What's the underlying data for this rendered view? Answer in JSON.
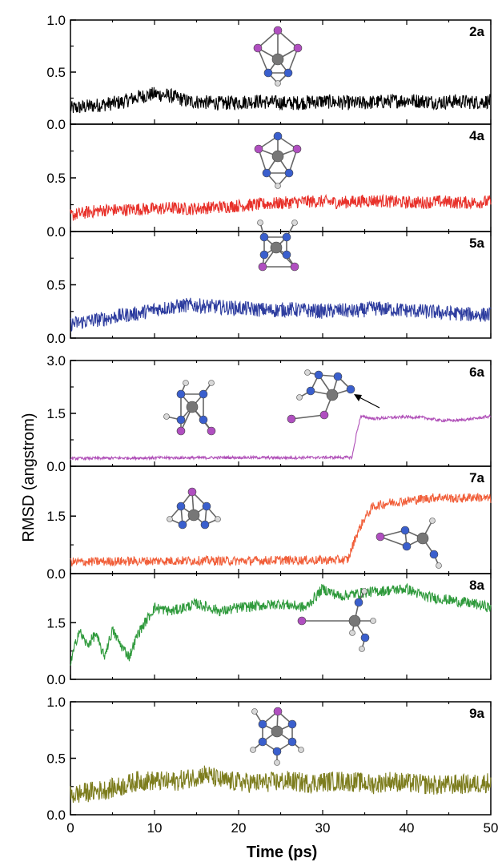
{
  "figure": {
    "ylabel": "RMSD (angstrom)",
    "xlabel": "Time (ps)",
    "x_ticks": [
      "0",
      "10",
      "20",
      "30",
      "40",
      "50"
    ]
  },
  "chart_data": [
    {
      "type": "line",
      "label": "2a",
      "color": "#000000",
      "ylim": [
        0,
        1.0
      ],
      "yticks": [
        0.0,
        0.5,
        1.0
      ],
      "ytick_labels": [
        "0.0",
        "0.5",
        "1.0"
      ],
      "xlim": [
        0,
        50
      ],
      "series": [
        {
          "x": [
            0,
            2,
            4,
            6,
            8,
            10,
            12,
            14,
            16,
            18,
            20,
            22,
            24,
            26,
            28,
            30,
            32,
            34,
            36,
            38,
            40,
            42,
            44,
            46,
            48,
            50
          ],
          "y": [
            0.15,
            0.17,
            0.19,
            0.21,
            0.26,
            0.29,
            0.27,
            0.22,
            0.21,
            0.2,
            0.21,
            0.22,
            0.21,
            0.2,
            0.21,
            0.22,
            0.21,
            0.2,
            0.21,
            0.22,
            0.23,
            0.22,
            0.21,
            0.22,
            0.21,
            0.22
          ]
        }
      ],
      "noise": 0.07
    },
    {
      "type": "line",
      "label": "4a",
      "color": "#e8312a",
      "ylim": [
        0,
        1.0
      ],
      "yticks": [
        0.0,
        0.5,
        1.0
      ],
      "ytick_labels": [
        "0.0",
        "0.5",
        ""
      ],
      "xlim": [
        0,
        50
      ],
      "series": [
        {
          "x": [
            0,
            2,
            4,
            6,
            8,
            10,
            12,
            14,
            16,
            18,
            20,
            22,
            24,
            26,
            28,
            30,
            32,
            34,
            36,
            38,
            40,
            42,
            44,
            46,
            48,
            50
          ],
          "y": [
            0.15,
            0.18,
            0.2,
            0.2,
            0.21,
            0.21,
            0.22,
            0.21,
            0.22,
            0.23,
            0.24,
            0.25,
            0.26,
            0.27,
            0.28,
            0.28,
            0.27,
            0.28,
            0.29,
            0.28,
            0.27,
            0.27,
            0.28,
            0.27,
            0.27,
            0.28
          ]
        }
      ],
      "noise": 0.06
    },
    {
      "type": "line",
      "label": "5a",
      "color": "#2e3d9f",
      "ylim": [
        0,
        1.0
      ],
      "yticks": [
        0.0,
        0.5,
        1.0
      ],
      "ytick_labels": [
        "0.0",
        "0.5",
        ""
      ],
      "xlim": [
        0,
        50
      ],
      "series": [
        {
          "x": [
            0,
            2,
            4,
            6,
            8,
            10,
            12,
            14,
            16,
            18,
            20,
            22,
            24,
            26,
            28,
            30,
            32,
            34,
            36,
            38,
            40,
            42,
            44,
            46,
            48,
            50
          ],
          "y": [
            0.13,
            0.16,
            0.18,
            0.21,
            0.23,
            0.27,
            0.29,
            0.31,
            0.3,
            0.29,
            0.28,
            0.27,
            0.26,
            0.27,
            0.26,
            0.25,
            0.26,
            0.25,
            0.28,
            0.27,
            0.26,
            0.25,
            0.24,
            0.23,
            0.22,
            0.22
          ]
        }
      ],
      "noise": 0.07
    },
    {
      "type": "line",
      "label": "6a",
      "color": "#b050b8",
      "ylim": [
        0,
        3.0
      ],
      "yticks": [
        0.0,
        1.5,
        3.0
      ],
      "ytick_labels": [
        "0.0",
        "1.5",
        "3.0"
      ],
      "xlim": [
        0,
        50
      ],
      "series": [
        {
          "x": [
            0,
            5,
            10,
            15,
            20,
            25,
            30,
            33.5,
            34.0,
            34.5,
            35,
            36,
            38,
            40,
            42,
            44,
            46,
            48,
            50
          ],
          "y": [
            0.22,
            0.23,
            0.24,
            0.24,
            0.25,
            0.24,
            0.25,
            0.25,
            0.9,
            1.4,
            1.4,
            1.35,
            1.38,
            1.4,
            1.38,
            1.3,
            1.3,
            1.35,
            1.42
          ]
        }
      ],
      "noise": 0.04
    },
    {
      "type": "line",
      "label": "7a",
      "color": "#f15f3a",
      "ylim": [
        0,
        2.8
      ],
      "yticks": [
        0.0,
        1.5
      ],
      "ytick_labels": [
        "0.0",
        "1.5"
      ],
      "xlim": [
        0,
        50
      ],
      "series": [
        {
          "x": [
            0,
            5,
            10,
            15,
            20,
            25,
            30,
            33,
            34,
            35,
            36,
            38,
            40,
            42,
            44,
            46,
            48,
            50
          ],
          "y": [
            0.3,
            0.32,
            0.33,
            0.34,
            0.33,
            0.35,
            0.35,
            0.36,
            1.0,
            1.45,
            1.75,
            1.85,
            1.9,
            1.95,
            2.0,
            1.95,
            2.0,
            1.95
          ]
        }
      ],
      "noise": 0.12
    },
    {
      "type": "line",
      "label": "8a",
      "color": "#2f9a3c",
      "ylim": [
        0,
        2.8
      ],
      "yticks": [
        0.0,
        1.5
      ],
      "ytick_labels": [
        "0.0",
        "1.5"
      ],
      "xlim": [
        0,
        50
      ],
      "series": [
        {
          "x": [
            0,
            1,
            2,
            3,
            4,
            5,
            6,
            7,
            8,
            10,
            12,
            15,
            18,
            20,
            25,
            28,
            30,
            32,
            35,
            40,
            42,
            45,
            48,
            50
          ],
          "y": [
            0.4,
            1.3,
            0.9,
            1.2,
            0.6,
            1.3,
            0.9,
            0.6,
            1.2,
            1.9,
            1.8,
            2.0,
            1.8,
            1.9,
            2.0,
            1.9,
            2.4,
            2.2,
            2.3,
            2.4,
            2.2,
            2.1,
            2.0,
            1.9
          ]
        }
      ],
      "noise": 0.14
    },
    {
      "type": "line",
      "label": "9a",
      "color": "#7d7d1e",
      "ylim": [
        0,
        1.0
      ],
      "yticks": [
        0.0,
        0.5,
        1.0
      ],
      "ytick_labels": [
        "0.0",
        "0.5",
        "1.0"
      ],
      "xlim": [
        0,
        50
      ],
      "series": [
        {
          "x": [
            0,
            2,
            4,
            6,
            8,
            10,
            12,
            14,
            16,
            18,
            20,
            22,
            24,
            26,
            28,
            30,
            32,
            34,
            36,
            38,
            40,
            42,
            44,
            46,
            48,
            50
          ],
          "y": [
            0.17,
            0.2,
            0.22,
            0.25,
            0.3,
            0.3,
            0.29,
            0.32,
            0.36,
            0.3,
            0.29,
            0.28,
            0.29,
            0.3,
            0.28,
            0.29,
            0.3,
            0.29,
            0.27,
            0.3,
            0.28,
            0.27,
            0.26,
            0.27,
            0.27,
            0.29
          ]
        }
      ],
      "noise": 0.09
    }
  ]
}
